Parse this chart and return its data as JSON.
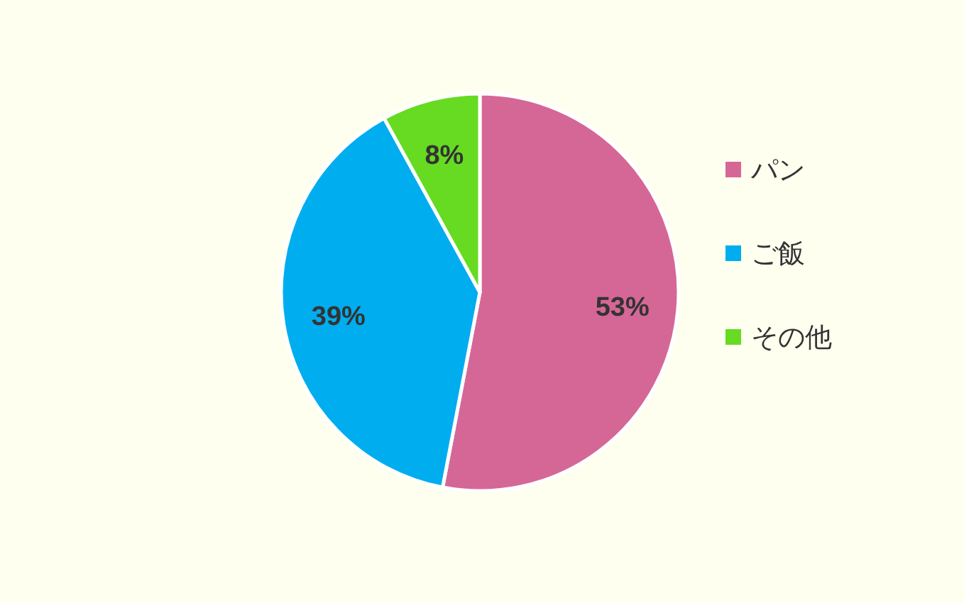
{
  "chart_data": {
    "type": "pie",
    "categories": [
      "パン",
      "ご飯",
      "その他"
    ],
    "values": [
      53,
      39,
      8
    ],
    "colors": [
      "#d56797",
      "#00adef",
      "#66db22"
    ],
    "value_labels": [
      "53%",
      "39%",
      "8%"
    ],
    "legend": "right"
  }
}
